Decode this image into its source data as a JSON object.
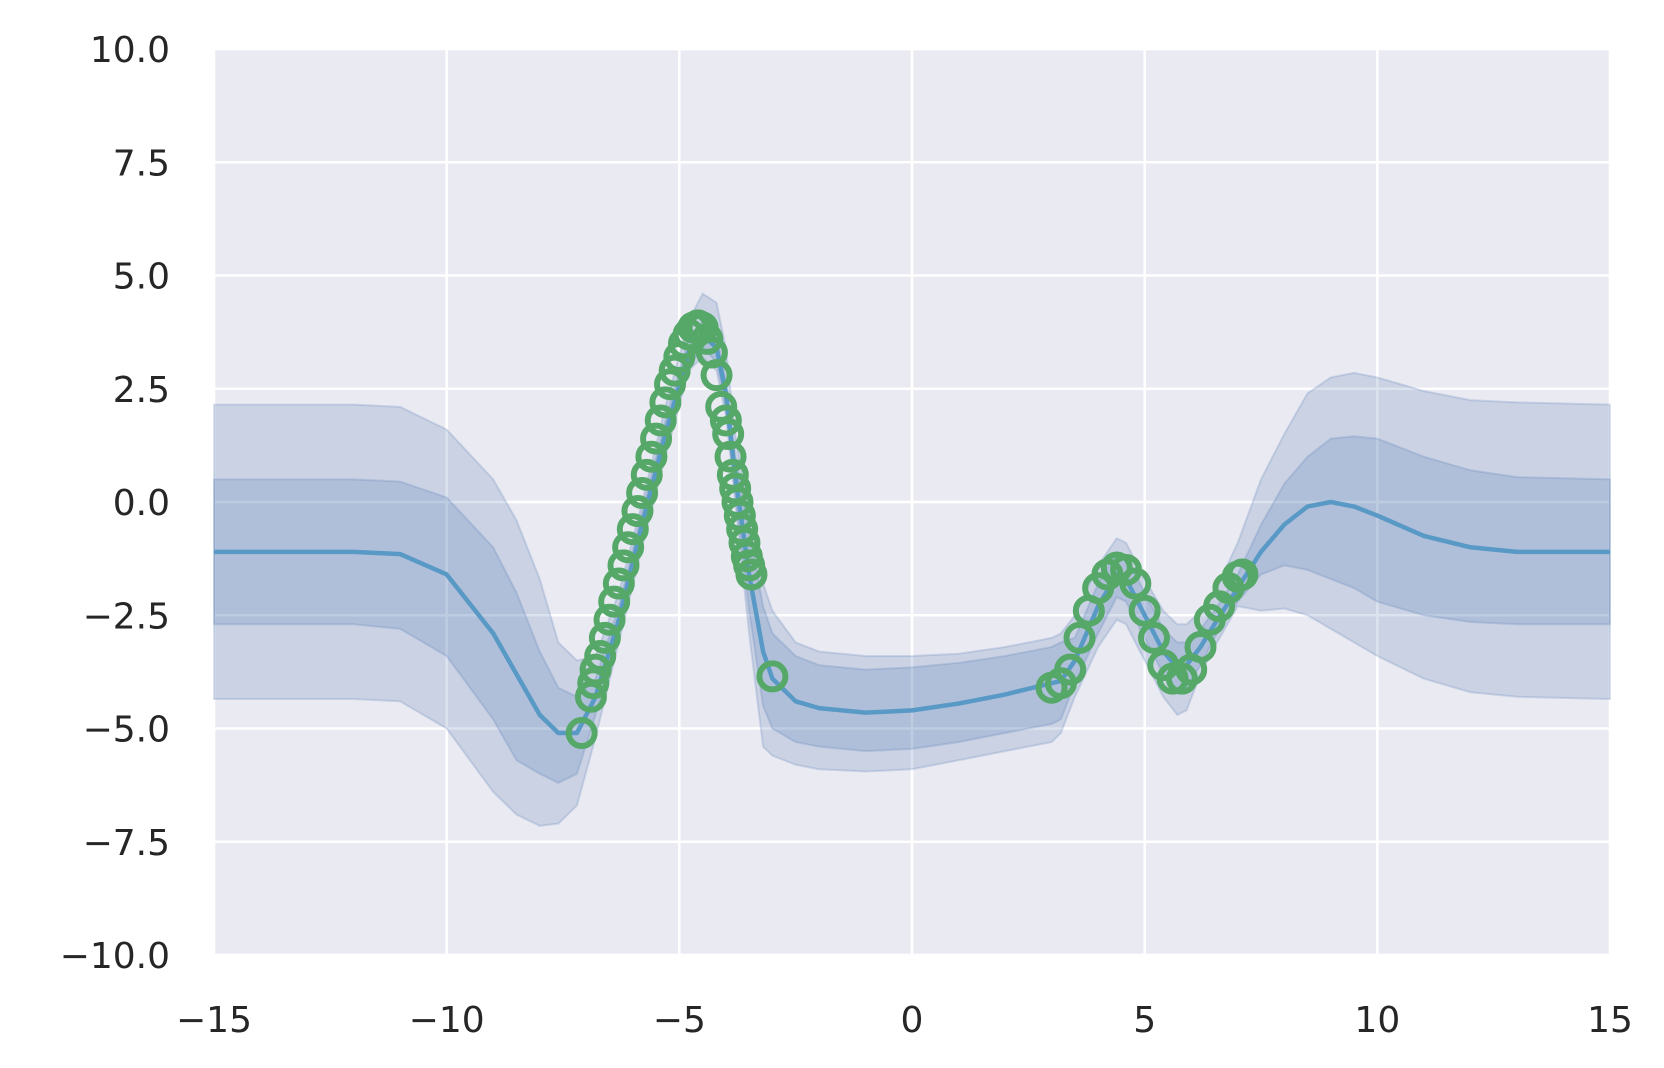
{
  "chart_data": {
    "type": "line",
    "title": "",
    "xlabel": "",
    "ylabel": "",
    "xlim": [
      -15,
      15
    ],
    "ylim": [
      -10,
      10
    ],
    "grid": true,
    "background_color": "#eaeaf2",
    "x_ticks": [
      -15,
      -10,
      -5,
      0,
      5,
      10,
      15
    ],
    "x_tick_labels": [
      "−15",
      "−10",
      "−5",
      "0",
      "5",
      "10",
      "15"
    ],
    "y_ticks": [
      10,
      7.5,
      5,
      2.5,
      0,
      -2.5,
      -5,
      -7.5,
      -10
    ],
    "y_tick_labels": [
      "10.0",
      "7.5",
      "5.0",
      "2.5",
      "0.0",
      "−2.5",
      "−5.0",
      "−7.5",
      "−10.0"
    ],
    "series": [
      {
        "kind": "mean",
        "color": "#5899c6",
        "x": [
          -15,
          -12,
          -11,
          -10,
          -9,
          -8.5,
          -8,
          -7.6,
          -7.2,
          -6.8,
          -6.3,
          -5.8,
          -5.3,
          -4.8,
          -4.5,
          -4.2,
          -4.0,
          -3.8,
          -3.5,
          -3.2,
          -3.0,
          -2.5,
          -2,
          -1,
          0,
          1,
          2,
          3,
          3.2,
          3.5,
          4,
          4.4,
          4.6,
          5,
          5.4,
          5.7,
          5.9,
          6.2,
          6.5,
          7,
          7.5,
          8,
          8.5,
          9,
          9.5,
          10,
          11,
          12,
          13,
          15
        ],
        "y": [
          -1.1,
          -1.1,
          -1.15,
          -1.6,
          -2.9,
          -3.8,
          -4.7,
          -5.1,
          -5.1,
          -4.3,
          -2.6,
          -0.5,
          1.5,
          3.3,
          3.7,
          3.4,
          2.4,
          0.6,
          -1.6,
          -3.3,
          -3.9,
          -4.4,
          -4.55,
          -4.65,
          -4.6,
          -4.45,
          -4.25,
          -4.0,
          -3.95,
          -3.5,
          -2.3,
          -1.6,
          -1.7,
          -2.5,
          -3.3,
          -3.65,
          -3.6,
          -3.2,
          -2.7,
          -1.9,
          -1.1,
          -0.5,
          -0.1,
          0.0,
          -0.1,
          -0.3,
          -0.75,
          -1.0,
          -1.1,
          -1.1
        ]
      },
      {
        "kind": "band_1sd",
        "color": "#4c72b0",
        "x": [
          -15,
          -12,
          -11,
          -10,
          -9,
          -8.5,
          -8,
          -7.6,
          -7.2,
          -6.8,
          -6.3,
          -5.8,
          -5.3,
          -4.8,
          -4.5,
          -4.2,
          -4.0,
          -3.8,
          -3.5,
          -3.2,
          -3.0,
          -2.5,
          -2,
          -1,
          0,
          1,
          2,
          3,
          3.2,
          3.5,
          4,
          4.4,
          4.6,
          5,
          5.4,
          5.7,
          5.9,
          6.2,
          6.5,
          7,
          7.5,
          8,
          8.5,
          9,
          9.5,
          10,
          11,
          12,
          13,
          15
        ],
        "lower": [
          -2.7,
          -2.7,
          -2.8,
          -3.4,
          -4.8,
          -5.7,
          -6.0,
          -6.2,
          -6.0,
          -4.7,
          -2.9,
          -0.8,
          1.2,
          3.0,
          3.4,
          3.1,
          2.1,
          0.2,
          -2.4,
          -4.5,
          -5.0,
          -5.3,
          -5.4,
          -5.5,
          -5.45,
          -5.3,
          -5.1,
          -4.9,
          -4.8,
          -4.0,
          -2.9,
          -2.1,
          -2.2,
          -3.0,
          -3.8,
          -4.2,
          -4.1,
          -3.6,
          -3.0,
          -2.2,
          -1.6,
          -1.4,
          -1.5,
          -1.7,
          -1.9,
          -2.2,
          -2.5,
          -2.65,
          -2.7,
          -2.7
        ],
        "upper": [
          0.5,
          0.5,
          0.45,
          0.1,
          -1.0,
          -2.0,
          -3.3,
          -4.1,
          -4.3,
          -3.9,
          -2.3,
          -0.2,
          1.8,
          3.6,
          4.0,
          3.7,
          2.7,
          1.0,
          -0.6,
          -2.3,
          -2.9,
          -3.4,
          -3.6,
          -3.7,
          -3.65,
          -3.55,
          -3.4,
          -3.2,
          -3.1,
          -3.0,
          -1.8,
          -1.1,
          -1.2,
          -2.0,
          -2.8,
          -3.1,
          -3.1,
          -2.8,
          -2.4,
          -1.6,
          -0.5,
          0.4,
          1.0,
          1.4,
          1.45,
          1.4,
          1.0,
          0.7,
          0.55,
          0.5
        ]
      },
      {
        "kind": "band_2sd",
        "color": "#4c72b0",
        "x": [
          -15,
          -12,
          -11,
          -10,
          -9,
          -8.5,
          -8,
          -7.6,
          -7.2,
          -6.8,
          -6.3,
          -5.8,
          -5.3,
          -4.8,
          -4.5,
          -4.2,
          -4.0,
          -3.8,
          -3.5,
          -3.2,
          -3.0,
          -2.5,
          -2,
          -1,
          0,
          1,
          2,
          3,
          3.2,
          3.5,
          4,
          4.4,
          4.6,
          5,
          5.4,
          5.7,
          5.9,
          6.2,
          6.5,
          7,
          7.5,
          8,
          8.5,
          9,
          9.5,
          10,
          11,
          12,
          13,
          15
        ],
        "lower": [
          -4.35,
          -4.35,
          -4.4,
          -5.0,
          -6.4,
          -6.9,
          -7.15,
          -7.1,
          -6.7,
          -5.2,
          -3.1,
          -1.0,
          1.0,
          2.9,
          3.2,
          2.9,
          1.9,
          0.0,
          -2.9,
          -5.4,
          -5.6,
          -5.8,
          -5.9,
          -5.95,
          -5.9,
          -5.7,
          -5.5,
          -5.3,
          -5.1,
          -4.3,
          -3.2,
          -2.6,
          -2.7,
          -3.5,
          -4.3,
          -4.7,
          -4.6,
          -3.8,
          -3.2,
          -2.3,
          -2.4,
          -2.35,
          -2.5,
          -2.8,
          -3.1,
          -3.4,
          -3.9,
          -4.2,
          -4.3,
          -4.35
        ],
        "upper": [
          2.15,
          2.15,
          2.1,
          1.6,
          0.5,
          -0.4,
          -1.7,
          -3.1,
          -3.5,
          -3.4,
          -2.0,
          0.0,
          2.1,
          4.0,
          4.6,
          4.4,
          3.4,
          1.5,
          -0.2,
          -1.8,
          -2.4,
          -3.1,
          -3.3,
          -3.4,
          -3.4,
          -3.35,
          -3.2,
          -3.0,
          -2.9,
          -2.5,
          -1.4,
          -0.8,
          -0.9,
          -1.7,
          -2.4,
          -2.7,
          -2.7,
          -2.4,
          -2.0,
          -0.9,
          0.5,
          1.5,
          2.4,
          2.75,
          2.85,
          2.75,
          2.45,
          2.25,
          2.2,
          2.15
        ]
      },
      {
        "kind": "observations",
        "color": "#55a868",
        "x": [
          -7.1,
          -6.9,
          -6.85,
          -6.8,
          -6.7,
          -6.6,
          -6.5,
          -6.4,
          -6.3,
          -6.2,
          -6.1,
          -6.0,
          -5.9,
          -5.8,
          -5.7,
          -5.6,
          -5.5,
          -5.4,
          -5.3,
          -5.2,
          -5.1,
          -5.0,
          -4.9,
          -4.8,
          -4.7,
          -4.6,
          -4.5,
          -4.4,
          -4.3,
          -4.2,
          -4.1,
          -4.0,
          -3.95,
          -3.9,
          -3.85,
          -3.8,
          -3.75,
          -3.7,
          -3.65,
          -3.6,
          -3.55,
          -3.5,
          -3.45,
          -3.0,
          3.0,
          3.2,
          3.4,
          3.6,
          3.8,
          4.0,
          4.2,
          4.4,
          4.6,
          4.8,
          5.0,
          5.2,
          5.4,
          5.6,
          5.8,
          6.0,
          6.2,
          6.4,
          6.6,
          6.8,
          7.0,
          7.1
        ],
        "y": [
          -5.1,
          -4.3,
          -4.0,
          -3.7,
          -3.4,
          -3.0,
          -2.6,
          -2.2,
          -1.8,
          -1.4,
          -1.0,
          -0.6,
          -0.2,
          0.2,
          0.6,
          1.0,
          1.4,
          1.8,
          2.2,
          2.6,
          2.9,
          3.2,
          3.5,
          3.7,
          3.85,
          3.9,
          3.85,
          3.6,
          3.3,
          2.8,
          2.1,
          1.8,
          1.5,
          1.0,
          0.6,
          0.3,
          0.0,
          -0.3,
          -0.6,
          -0.9,
          -1.2,
          -1.4,
          -1.6,
          -3.85,
          -4.1,
          -4.0,
          -3.7,
          -3.0,
          -2.4,
          -1.9,
          -1.6,
          -1.45,
          -1.5,
          -1.8,
          -2.4,
          -3.0,
          -3.6,
          -3.9,
          -3.9,
          -3.7,
          -3.2,
          -2.6,
          -2.3,
          -1.9,
          -1.65,
          -1.6
        ]
      }
    ]
  }
}
